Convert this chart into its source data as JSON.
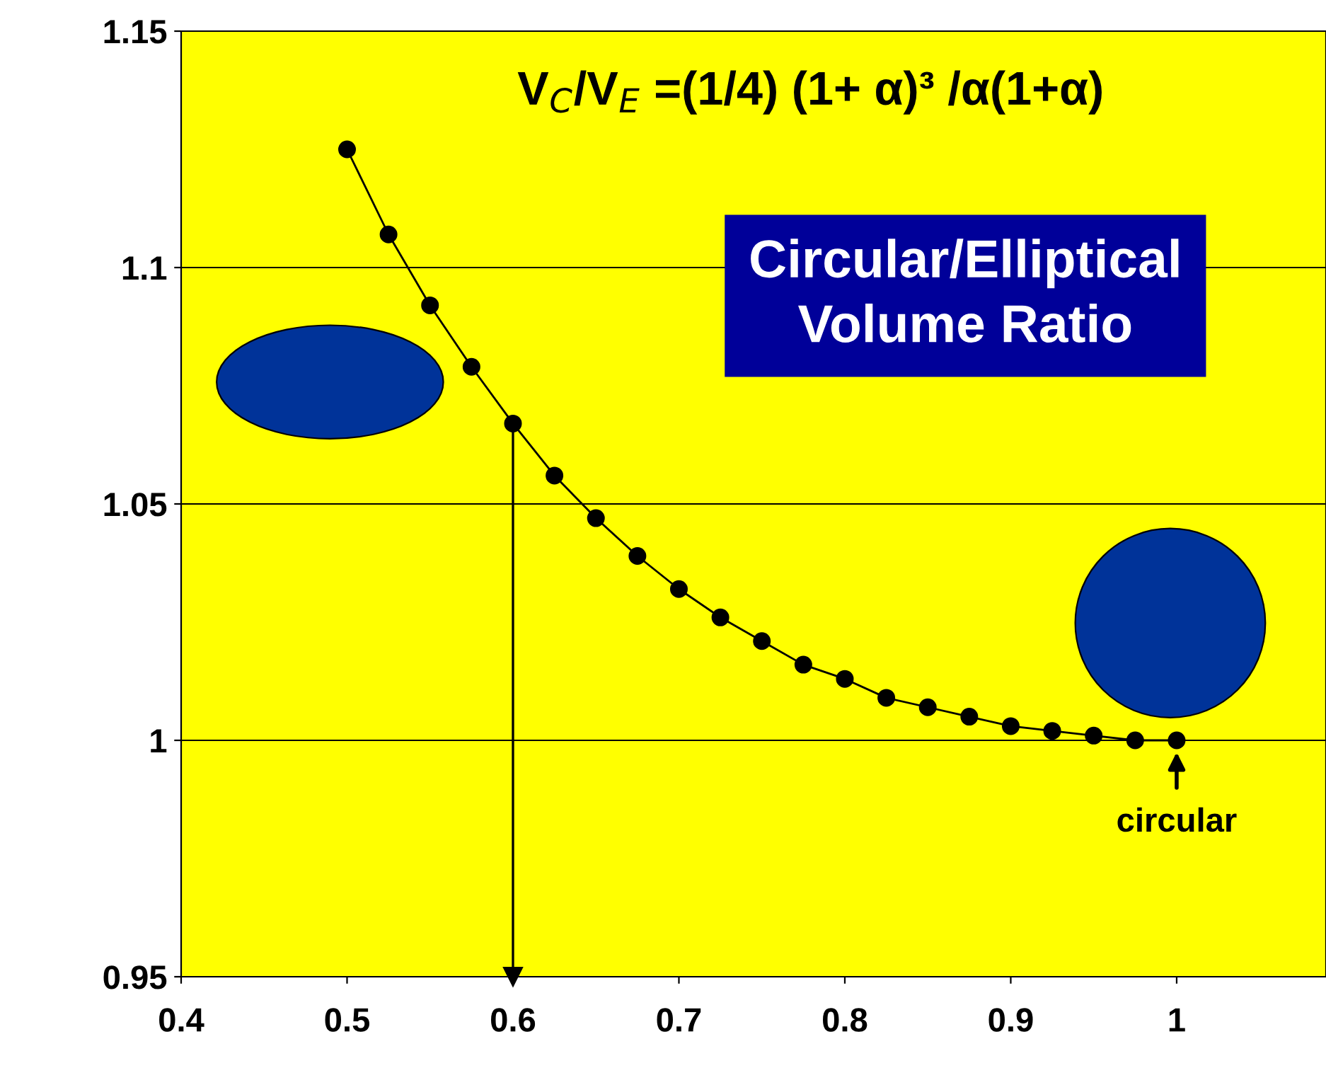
{
  "chart_data": {
    "type": "line",
    "x": [
      0.5,
      0.525,
      0.55,
      0.575,
      0.6,
      0.625,
      0.65,
      0.675,
      0.7,
      0.725,
      0.75,
      0.775,
      0.8,
      0.825,
      0.85,
      0.875,
      0.9,
      0.925,
      0.95,
      0.975,
      1.0
    ],
    "series": [
      {
        "color": "#000000",
        "values": [
          1.125,
          1.107,
          1.092,
          1.079,
          1.067,
          1.056,
          1.047,
          1.039,
          1.032,
          1.026,
          1.021,
          1.016,
          1.013,
          1.009,
          1.007,
          1.005,
          1.003,
          1.002,
          1.001,
          1.0,
          1.0
        ]
      }
    ],
    "marker": "circle",
    "line_style": "solid",
    "xlim": [
      0.4,
      1.09
    ],
    "xticks": [
      0.4,
      0.5,
      0.6,
      0.7,
      0.8,
      0.9,
      1
    ],
    "ylim": [
      0.95,
      1.15
    ],
    "yticks": [
      0.95,
      1,
      1.05,
      1.1,
      1.15
    ],
    "grid": "y",
    "ref_lines": [
      {
        "axis": "x",
        "value": 0.6,
        "color": "#000000"
      }
    ],
    "annotations": [
      "V$_{C}$/V$_{E}$ =(1/4) (1+ α)³ /α(1+α)",
      "Circular/Elliptical\nVolume Ratio",
      {
        "text": "circular",
        "x": 1,
        "y": 1
      }
    ]
  }
}
